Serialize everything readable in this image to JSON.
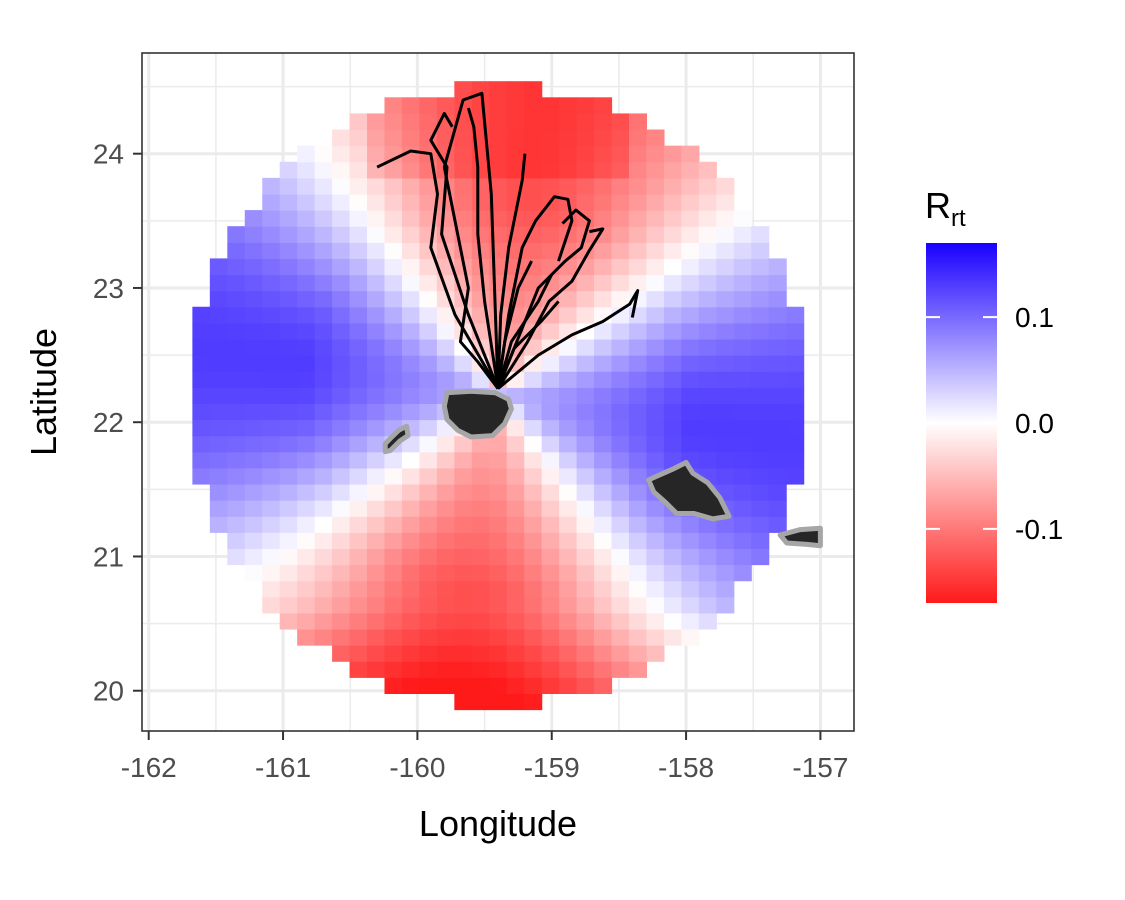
{
  "chart_data": {
    "type": "heatmap",
    "xlabel": "Longitude",
    "ylabel": "Latitude",
    "xlim": [
      -162.05,
      -156.75
    ],
    "ylim": [
      19.7,
      24.75
    ],
    "x_ticks": [
      -162,
      -161,
      -160,
      -159,
      -158,
      -157
    ],
    "x_tick_labels": [
      "-162",
      "-161",
      "-160",
      "-159",
      "-158",
      "-157"
    ],
    "y_ticks": [
      20,
      21,
      22,
      23,
      24
    ],
    "y_tick_labels": [
      "20",
      "21",
      "22",
      "23",
      "24"
    ],
    "grid": true,
    "field": {
      "center": [
        -159.4,
        22.2
      ],
      "radius_deg": 2.3,
      "cell_lon": 0.13,
      "cell_lat": 0.12,
      "value_range": [
        -0.17,
        0.17
      ]
    },
    "legend": {
      "title_main": "R",
      "title_sub": "rt",
      "placement": "right",
      "ticks": [
        0.1,
        0.0,
        -0.1
      ],
      "tick_labels": [
        "0.1",
        "0.0",
        "-0.1"
      ],
      "colors": {
        "high": "#1a00ff",
        "mid": "#ffffff",
        "low": "#ff1a1a"
      }
    },
    "islands": [
      {
        "name": "",
        "outline": [
          [
            -159.78,
            22.22
          ],
          [
            -159.6,
            22.23
          ],
          [
            -159.42,
            22.22
          ],
          [
            -159.32,
            22.17
          ],
          [
            -159.3,
            22.1
          ],
          [
            -159.35,
            21.99
          ],
          [
            -159.44,
            21.9
          ],
          [
            -159.6,
            21.89
          ],
          [
            -159.7,
            21.94
          ],
          [
            -159.78,
            22.02
          ],
          [
            -159.8,
            22.12
          ]
        ]
      },
      {
        "name": "",
        "outline": [
          [
            -160.24,
            21.84
          ],
          [
            -160.2,
            21.88
          ],
          [
            -160.14,
            21.94
          ],
          [
            -160.08,
            21.97
          ],
          [
            -160.07,
            21.9
          ],
          [
            -160.13,
            21.86
          ],
          [
            -160.2,
            21.79
          ],
          [
            -160.24,
            21.78
          ]
        ]
      },
      {
        "name": "",
        "outline": [
          [
            -158.28,
            21.57
          ],
          [
            -158.1,
            21.65
          ],
          [
            -158.0,
            21.7
          ],
          [
            -157.95,
            21.62
          ],
          [
            -157.84,
            21.55
          ],
          [
            -157.75,
            21.44
          ],
          [
            -157.68,
            21.3
          ],
          [
            -157.8,
            21.28
          ],
          [
            -157.94,
            21.32
          ],
          [
            -158.07,
            21.32
          ],
          [
            -158.15,
            21.4
          ],
          [
            -158.24,
            21.48
          ]
        ]
      },
      {
        "name": "",
        "outline": [
          [
            -157.3,
            21.16
          ],
          [
            -157.15,
            21.2
          ],
          [
            -157.0,
            21.21
          ],
          [
            -157.0,
            21.08
          ],
          [
            -157.1,
            21.09
          ],
          [
            -157.25,
            21.1
          ]
        ]
      }
    ],
    "tracks": [
      [
        [
          -159.4,
          22.25
        ],
        [
          -159.55,
          22.45
        ],
        [
          -159.68,
          22.6
        ],
        [
          -159.62,
          23.0
        ],
        [
          -159.72,
          23.5
        ],
        [
          -159.8,
          23.9
        ],
        [
          -159.66,
          24.4
        ],
        [
          -159.52,
          24.45
        ],
        [
          -159.45,
          23.7
        ],
        [
          -159.4,
          22.25
        ]
      ],
      [
        [
          -159.4,
          22.25
        ],
        [
          -159.72,
          22.8
        ],
        [
          -159.9,
          23.3
        ],
        [
          -159.85,
          23.7
        ],
        [
          -159.9,
          24.0
        ],
        [
          -160.05,
          24.02
        ],
        [
          -160.3,
          23.9
        ]
      ],
      [
        [
          -159.4,
          22.25
        ],
        [
          -159.62,
          22.8
        ],
        [
          -159.82,
          23.4
        ],
        [
          -159.78,
          23.9
        ],
        [
          -159.9,
          24.1
        ],
        [
          -159.8,
          24.3
        ],
        [
          -159.74,
          24.2
        ]
      ],
      [
        [
          -159.4,
          22.25
        ],
        [
          -159.5,
          22.9
        ],
        [
          -159.55,
          23.4
        ],
        [
          -159.55,
          23.9
        ],
        [
          -159.58,
          24.2
        ],
        [
          -159.62,
          24.34
        ]
      ],
      [
        [
          -159.4,
          22.25
        ],
        [
          -159.38,
          22.8
        ],
        [
          -159.32,
          23.3
        ],
        [
          -159.22,
          23.8
        ],
        [
          -159.2,
          24.0
        ]
      ],
      [
        [
          -159.4,
          22.25
        ],
        [
          -159.32,
          22.8
        ],
        [
          -159.22,
          23.3
        ],
        [
          -159.12,
          23.5
        ],
        [
          -158.98,
          23.68
        ],
        [
          -158.88,
          23.66
        ],
        [
          -158.85,
          23.5
        ],
        [
          -158.9,
          23.35
        ],
        [
          -158.95,
          23.2
        ]
      ],
      [
        [
          -159.4,
          22.25
        ],
        [
          -159.22,
          22.7
        ],
        [
          -159.1,
          23.0
        ],
        [
          -158.9,
          23.2
        ],
        [
          -158.78,
          23.3
        ],
        [
          -158.72,
          23.5
        ],
        [
          -158.82,
          23.58
        ],
        [
          -158.92,
          23.48
        ]
      ],
      [
        [
          -159.4,
          22.25
        ],
        [
          -159.18,
          22.6
        ],
        [
          -159.02,
          22.9
        ],
        [
          -158.85,
          23.05
        ],
        [
          -158.72,
          23.28
        ],
        [
          -158.62,
          23.44
        ],
        [
          -158.72,
          23.42
        ]
      ],
      [
        [
          -159.4,
          22.25
        ],
        [
          -159.1,
          22.5
        ],
        [
          -158.85,
          22.65
        ],
        [
          -158.62,
          22.75
        ],
        [
          -158.42,
          22.88
        ],
        [
          -158.36,
          22.98
        ],
        [
          -158.4,
          22.78
        ]
      ],
      [
        [
          -159.4,
          22.25
        ],
        [
          -159.3,
          22.6
        ],
        [
          -159.1,
          22.9
        ],
        [
          -159.0,
          23.1
        ]
      ],
      [
        [
          -159.4,
          22.25
        ],
        [
          -159.28,
          22.55
        ],
        [
          -159.08,
          22.75
        ],
        [
          -158.95,
          22.9
        ]
      ],
      [
        [
          -159.4,
          22.25
        ],
        [
          -159.35,
          22.6
        ],
        [
          -159.25,
          23.0
        ],
        [
          -159.15,
          23.2
        ]
      ]
    ]
  }
}
